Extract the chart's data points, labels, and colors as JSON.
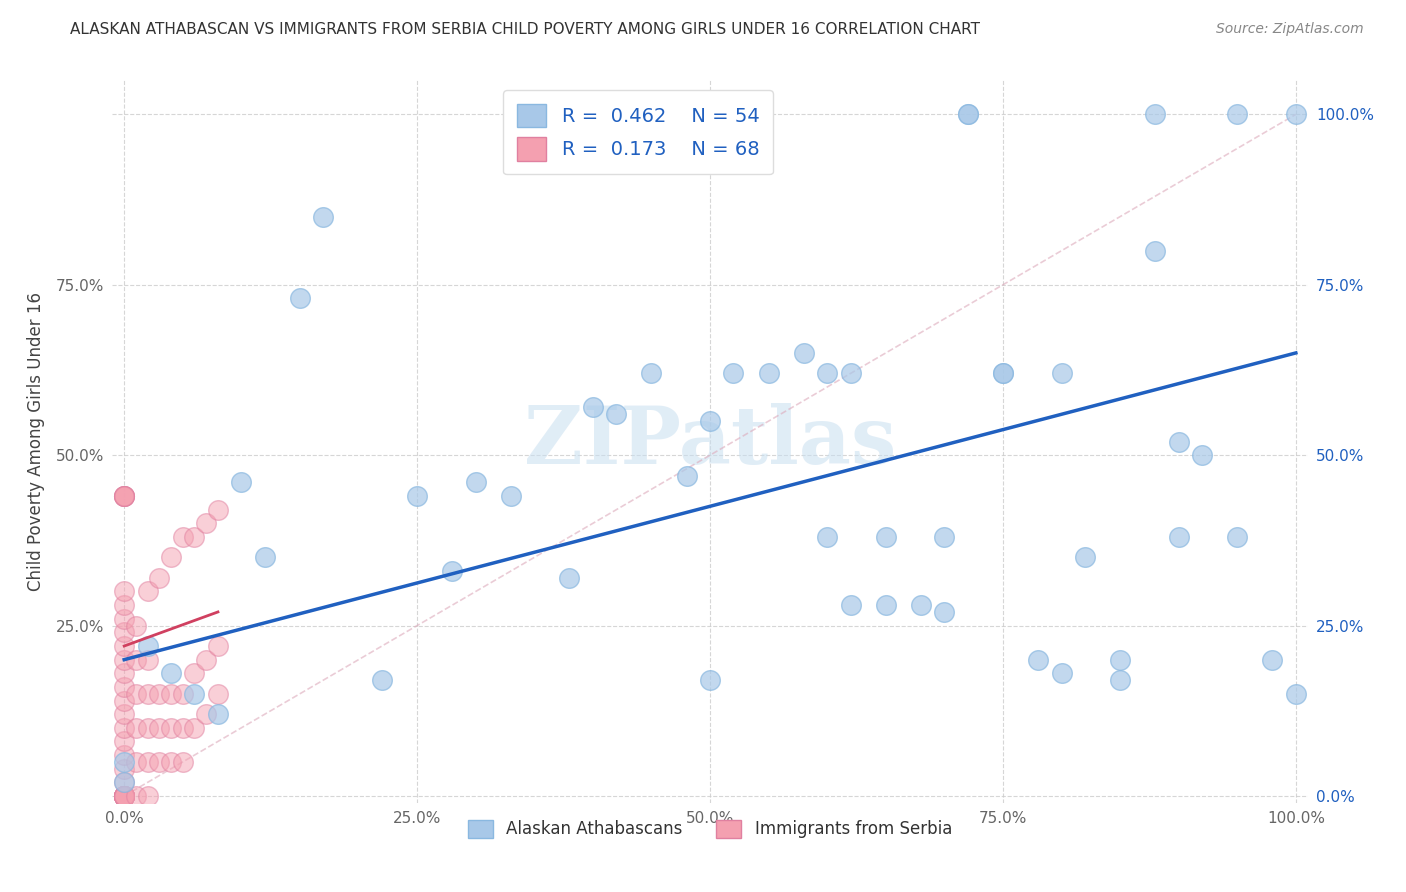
{
  "title": "ALASKAN ATHABASCAN VS IMMIGRANTS FROM SERBIA CHILD POVERTY AMONG GIRLS UNDER 16 CORRELATION CHART",
  "source": "Source: ZipAtlas.com",
  "ylabel": "Child Poverty Among Girls Under 16",
  "r_blue": 0.462,
  "n_blue": 54,
  "r_pink": 0.173,
  "n_pink": 68,
  "blue_color": "#a8c8e8",
  "pink_color": "#f4a0b0",
  "blue_line_color": "#2060c0",
  "pink_line_color": "#d04060",
  "diag_color": "#cccccc",
  "grid_color": "#cccccc",
  "bg_color": "#ffffff",
  "blue_scatter_x": [
    0.0,
    0.0,
    0.02,
    0.04,
    0.06,
    0.08,
    0.1,
    0.12,
    0.15,
    0.17,
    0.22,
    0.25,
    0.28,
    0.3,
    0.33,
    0.38,
    0.4,
    0.42,
    0.45,
    0.48,
    0.5,
    0.52,
    0.55,
    0.58,
    0.6,
    0.62,
    0.62,
    0.65,
    0.68,
    0.7,
    0.72,
    0.75,
    0.78,
    0.8,
    0.82,
    0.85,
    0.88,
    0.9,
    0.92,
    0.95,
    0.98,
    1.0,
    0.72,
    0.88,
    0.95,
    1.0,
    0.5,
    0.6,
    0.65,
    0.7,
    0.75,
    0.8,
    0.85,
    0.9
  ],
  "blue_scatter_y": [
    0.02,
    0.05,
    0.22,
    0.18,
    0.15,
    0.12,
    0.46,
    0.35,
    0.73,
    0.85,
    0.17,
    0.44,
    0.33,
    0.46,
    0.44,
    0.32,
    0.57,
    0.56,
    0.62,
    0.47,
    0.17,
    0.62,
    0.62,
    0.65,
    0.38,
    0.28,
    0.62,
    0.38,
    0.28,
    0.38,
    1.0,
    0.62,
    0.2,
    0.18,
    0.35,
    0.17,
    0.8,
    0.52,
    0.5,
    0.38,
    0.2,
    1.0,
    1.0,
    1.0,
    1.0,
    0.15,
    0.55,
    0.62,
    0.28,
    0.27,
    0.62,
    0.62,
    0.2,
    0.38
  ],
  "pink_scatter_x": [
    0.0,
    0.0,
    0.0,
    0.0,
    0.0,
    0.0,
    0.0,
    0.0,
    0.0,
    0.0,
    0.0,
    0.0,
    0.0,
    0.0,
    0.0,
    0.0,
    0.0,
    0.0,
    0.0,
    0.0,
    0.0,
    0.0,
    0.0,
    0.0,
    0.0,
    0.0,
    0.0,
    0.0,
    0.0,
    0.0,
    0.01,
    0.01,
    0.01,
    0.01,
    0.01,
    0.02,
    0.02,
    0.02,
    0.02,
    0.02,
    0.03,
    0.03,
    0.03,
    0.04,
    0.04,
    0.04,
    0.05,
    0.05,
    0.05,
    0.06,
    0.06,
    0.07,
    0.07,
    0.08,
    0.08,
    0.0,
    0.0,
    0.0,
    0.0,
    0.0,
    0.01,
    0.02,
    0.03,
    0.04,
    0.05,
    0.06,
    0.07,
    0.08
  ],
  "pink_scatter_y": [
    0.0,
    0.0,
    0.0,
    0.0,
    0.0,
    0.0,
    0.0,
    0.0,
    0.0,
    0.0,
    0.0,
    0.0,
    0.0,
    0.0,
    0.0,
    0.02,
    0.04,
    0.06,
    0.08,
    0.1,
    0.12,
    0.14,
    0.16,
    0.18,
    0.2,
    0.22,
    0.24,
    0.26,
    0.28,
    0.3,
    0.0,
    0.05,
    0.1,
    0.15,
    0.2,
    0.0,
    0.05,
    0.1,
    0.15,
    0.2,
    0.05,
    0.1,
    0.15,
    0.05,
    0.1,
    0.15,
    0.05,
    0.1,
    0.15,
    0.1,
    0.18,
    0.12,
    0.2,
    0.15,
    0.22,
    0.44,
    0.44,
    0.44,
    0.44,
    0.44,
    0.25,
    0.3,
    0.32,
    0.35,
    0.38,
    0.38,
    0.4,
    0.42
  ],
  "blue_line_x": [
    0.0,
    1.0
  ],
  "blue_line_y": [
    0.2,
    0.65
  ],
  "pink_line_x": [
    0.0,
    0.08
  ],
  "pink_line_y": [
    0.22,
    0.27
  ],
  "xticks": [
    0.0,
    0.25,
    0.5,
    0.75,
    1.0
  ],
  "xtick_labels": [
    "0.0%",
    "25.0%",
    "50.0%",
    "75.0%",
    "100.0%"
  ],
  "yticks": [
    0.0,
    0.25,
    0.5,
    0.75,
    1.0
  ],
  "ytick_labels_left": [
    "",
    "25.0%",
    "50.0%",
    "75.0%",
    ""
  ],
  "ytick_labels_right": [
    "0.0%",
    "25.0%",
    "50.0%",
    "75.0%",
    "100.0%"
  ],
  "legend_label_blue": "Alaskan Athabascans",
  "legend_label_pink": "Immigrants from Serbia",
  "watermark_color": "#c8dff0"
}
